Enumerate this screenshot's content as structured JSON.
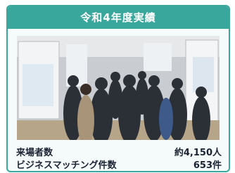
{
  "header": {
    "title": "令和4年度実績"
  },
  "rows": [
    {
      "label": "来場者数",
      "value": "約4,150人"
    },
    {
      "label": "ビジネスマッチング件数",
      "value": "653件"
    }
  ]
}
